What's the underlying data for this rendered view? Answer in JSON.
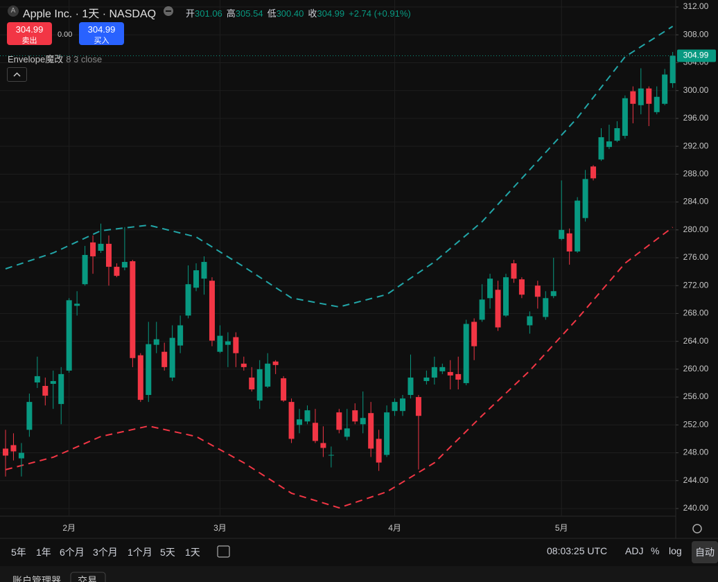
{
  "header": {
    "logo": "A",
    "symbol": "Apple Inc. · 1天 · NASDAQ",
    "ohlc": [
      {
        "label": "开",
        "value": "301.06"
      },
      {
        "label": "高",
        "value": "305.54"
      },
      {
        "label": "低",
        "value": "300.40"
      },
      {
        "label": "收",
        "value": "304.99"
      }
    ],
    "change": "+2.74 (+0.91%)"
  },
  "trade": {
    "sell": "卖出",
    "spread": "0.00",
    "buy": "买入"
  },
  "indicator": {
    "name": "Envelope魔改",
    "params": "8 3 close"
  },
  "chart_data": {
    "type": "candlestick",
    "categories": [
      null,
      null,
      null,
      null,
      null,
      null,
      null,
      null,
      "2月",
      null,
      null,
      null,
      null,
      null,
      null,
      null,
      null,
      null,
      null,
      null,
      null,
      null,
      null,
      null,
      null,
      null,
      null,
      "3月",
      null,
      null,
      null,
      null,
      null,
      null,
      null,
      null,
      null,
      null,
      null,
      null,
      null,
      null,
      null,
      null,
      null,
      null,
      null,
      null,
      null,
      "4月",
      null,
      null,
      null,
      null,
      null,
      null,
      null,
      null,
      null,
      null,
      null,
      null,
      null,
      null,
      null,
      null,
      null,
      null,
      null,
      null,
      "5月",
      null,
      null,
      null,
      null,
      null,
      null,
      null,
      null,
      null,
      null,
      null,
      null,
      null,
      null
    ],
    "open": [
      248.6,
      249.1,
      247.2,
      251.3,
      258.1,
      257.6,
      257.9,
      255.0,
      259.8,
      269.1,
      272.2,
      278.2,
      277.0,
      278.0,
      274.7,
      274.6,
      275.5,
      262.0,
      256.3,
      263.5,
      262.5,
      258.8,
      263.4,
      267.7,
      271.7,
      273.0,
      272.7,
      262.5,
      263.5,
      264.6,
      260.8,
      258.8,
      255.5,
      257.5,
      261.1,
      258.7,
      255.3,
      252.0,
      252.5,
      252.3,
      249.4,
      247.6,
      253.8,
      250.3,
      254.1,
      252.1,
      253.7,
      250.0,
      247.7,
      254.0,
      254.0,
      256.3,
      256.0,
      258.3,
      258.8,
      259.7,
      259.6,
      259.3,
      258.0,
      266.8,
      267.1,
      270.2,
      271.4,
      267.7,
      275.2,
      272.9,
      266.3,
      272.0,
      267.5,
      270.5,
      278.7,
      279.5,
      276.9,
      281.7,
      289.1,
      290.1,
      291.9,
      292.8,
      293.5,
      299.9,
      297.9,
      300.3,
      296.9,
      298.1,
      301.06
    ],
    "high": [
      251.3,
      250.8,
      249.4,
      256.5,
      261.8,
      258.8,
      259.8,
      260.3,
      270.2,
      271.2,
      277.7,
      279.2,
      280.9,
      279.2,
      275.2,
      280.4,
      275.7,
      262.3,
      266.8,
      266.8,
      263.8,
      266.3,
      267.7,
      274.9,
      275.2,
      276.2,
      273.2,
      266.3,
      265.3,
      265.3,
      261.8,
      260.3,
      261.3,
      262.3,
      261.3,
      259.0,
      255.8,
      254.3,
      254.8,
      254.3,
      251.8,
      248.9,
      254.3,
      254.3,
      255.1,
      256.8,
      255.3,
      251.3,
      254.8,
      255.8,
      256.3,
      262.1,
      256.3,
      259.8,
      261.8,
      260.8,
      261.3,
      261.8,
      267.1,
      267.3,
      272.2,
      273.7,
      272.7,
      273.7,
      275.7,
      273.2,
      268.3,
      272.7,
      271.2,
      276.0,
      287.1,
      280.2,
      284.7,
      288.6,
      289.3,
      294.6,
      295.1,
      295.6,
      299.3,
      300.6,
      303.2,
      300.6,
      300.6,
      303.1,
      305.54
    ],
    "low": [
      244.6,
      246.9,
      244.6,
      250.3,
      257.3,
      254.8,
      254.3,
      252.1,
      259.5,
      267.7,
      272.0,
      273.7,
      276.7,
      272.0,
      273.2,
      274.2,
      260.3,
      255.3,
      255.3,
      262.3,
      259.8,
      258.3,
      262.3,
      267.3,
      271.2,
      270.7,
      263.3,
      262.3,
      260.3,
      260.3,
      259.8,
      256.8,
      254.3,
      257.3,
      259.3,
      255.3,
      249.4,
      250.8,
      252.1,
      249.4,
      247.4,
      245.9,
      250.8,
      249.8,
      252.1,
      250.8,
      247.4,
      245.4,
      247.4,
      253.3,
      253.3,
      255.8,
      245.6,
      257.8,
      257.8,
      259.3,
      257.1,
      257.1,
      257.7,
      261.3,
      266.8,
      268.7,
      265.5,
      267.5,
      272.4,
      270.2,
      265.1,
      268.7,
      267.1,
      270.2,
      278.5,
      275.0,
      276.7,
      281.2,
      287.1,
      289.9,
      291.6,
      292.6,
      293.1,
      295.3,
      296.6,
      294.9,
      296.6,
      297.9,
      300.4
    ],
    "close": [
      247.6,
      248.2,
      248.0,
      255.3,
      259.0,
      256.2,
      258.3,
      259.3,
      269.9,
      269.4,
      276.4,
      276.2,
      278.0,
      274.7,
      273.4,
      275.4,
      261.6,
      255.6,
      263.6,
      264.3,
      260.3,
      264.5,
      266.3,
      272.2,
      274.2,
      275.4,
      264.1,
      264.8,
      264.0,
      262.3,
      260.3,
      257.1,
      260.0,
      260.8,
      260.6,
      255.5,
      250.0,
      252.8,
      254.1,
      249.7,
      248.7,
      247.7,
      251.3,
      251.5,
      252.5,
      253.0,
      248.6,
      246.6,
      253.8,
      255.3,
      255.8,
      258.8,
      253.3,
      258.8,
      260.3,
      260.3,
      259.1,
      258.5,
      266.5,
      263.3,
      270.0,
      273.0,
      266.0,
      273.2,
      273.0,
      270.7,
      267.6,
      270.4,
      270.2,
      271.2,
      280.0,
      276.9,
      284.2,
      287.3,
      287.4,
      293.3,
      292.7,
      294.6,
      298.9,
      298.1,
      300.3,
      298.1,
      299.1,
      302.3,
      304.99
    ],
    "up_color": "#089981",
    "down_color": "#f23645",
    "series": [
      {
        "color": "#22a6a8",
        "x": [
          0,
          6,
          12,
          18,
          24,
          30,
          36,
          42,
          48,
          54,
          60,
          66,
          72,
          78,
          84
        ],
        "values": [
          274.41,
          276.7,
          279.88,
          280.68,
          278.98,
          274.71,
          270.23,
          268.94,
          270.73,
          275.4,
          281.17,
          288.63,
          296.09,
          304.84,
          309.22
        ]
      },
      {
        "color": "#f23645",
        "x": [
          0,
          6,
          12,
          18,
          24,
          30,
          36,
          42,
          48,
          54,
          60,
          66,
          72,
          78,
          84
        ],
        "values": [
          245.57,
          247.36,
          250.34,
          251.84,
          250.34,
          246.57,
          242.19,
          240.1,
          242.39,
          246.57,
          253.33,
          259.79,
          267.25,
          275.21,
          280.38
        ]
      }
    ],
    "ylim": [
      238.9,
      313
    ],
    "yticks": [
      {
        "value": 240,
        "label": "240.00"
      },
      {
        "value": 244,
        "label": "244.00"
      },
      {
        "value": 248,
        "label": "248.00"
      },
      {
        "value": 252,
        "label": "252.00"
      },
      {
        "value": 256,
        "label": "256.00"
      },
      {
        "value": 260,
        "label": "260.00"
      },
      {
        "value": 264,
        "label": "264.00"
      },
      {
        "value": 268,
        "label": "268.00"
      },
      {
        "value": 272,
        "label": "272.00"
      },
      {
        "value": 276,
        "label": "276.00"
      },
      {
        "value": 280,
        "label": "280.00"
      },
      {
        "value": 284,
        "label": "284.00"
      },
      {
        "value": 288,
        "label": "288.00"
      },
      {
        "value": 292,
        "label": "292.00"
      },
      {
        "value": 296,
        "label": "296.00"
      },
      {
        "value": 300,
        "label": "300.00"
      },
      {
        "value": 304,
        "label": "304.00"
      },
      {
        "value": 308,
        "label": "308.00"
      },
      {
        "value": 312,
        "label": "312.00"
      }
    ],
    "grid": true
  },
  "toolbar": {
    "ranges": [
      "5年",
      "1年",
      "6个月",
      "3个月",
      "1个月",
      "5天",
      "1天"
    ],
    "time": "08:03:25 UTC",
    "options": [
      "ADJ",
      "%",
      "log",
      "自动"
    ]
  },
  "footer": {
    "tabs": [
      "账户管理器",
      "交易"
    ]
  }
}
